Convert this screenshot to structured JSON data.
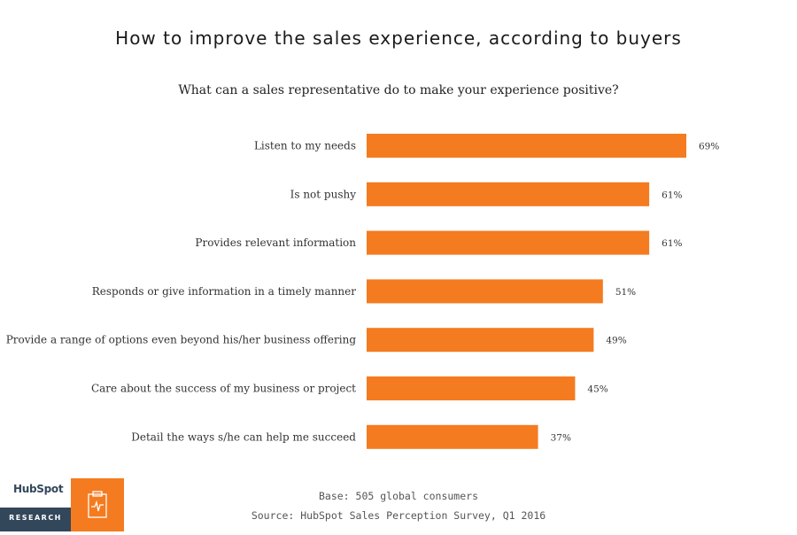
{
  "title": "How to improve the sales experience, according to buyers",
  "subtitle": "What can a sales representative do to make your experience positive?",
  "footer": {
    "base": "Base: 505 global consumers",
    "source": "Source: HubSpot Sales Perception Survey, Q1 2016"
  },
  "branding": {
    "logo_text": "HubSpot",
    "research_label": "RESEARCH",
    "icon": "clipboard-pulse-icon"
  },
  "colors": {
    "bar": "#f47b20",
    "brand_dark": "#33475b"
  },
  "chart_data": {
    "type": "bar",
    "orientation": "horizontal",
    "categories": [
      "Listen to my needs",
      "Is not pushy",
      "Provides relevant information",
      "Responds or give information in a timely manner",
      "Provide a range of options even beyond his/her business offering",
      "Care about the success of my business or project",
      "Detail the ways s/he can help me succeed"
    ],
    "values": [
      69,
      61,
      61,
      51,
      49,
      45,
      37
    ],
    "value_labels": [
      "69%",
      "61%",
      "61%",
      "51%",
      "49%",
      "45%",
      "37%"
    ],
    "xlim": [
      0,
      69
    ],
    "grid": false,
    "legend": "none"
  }
}
